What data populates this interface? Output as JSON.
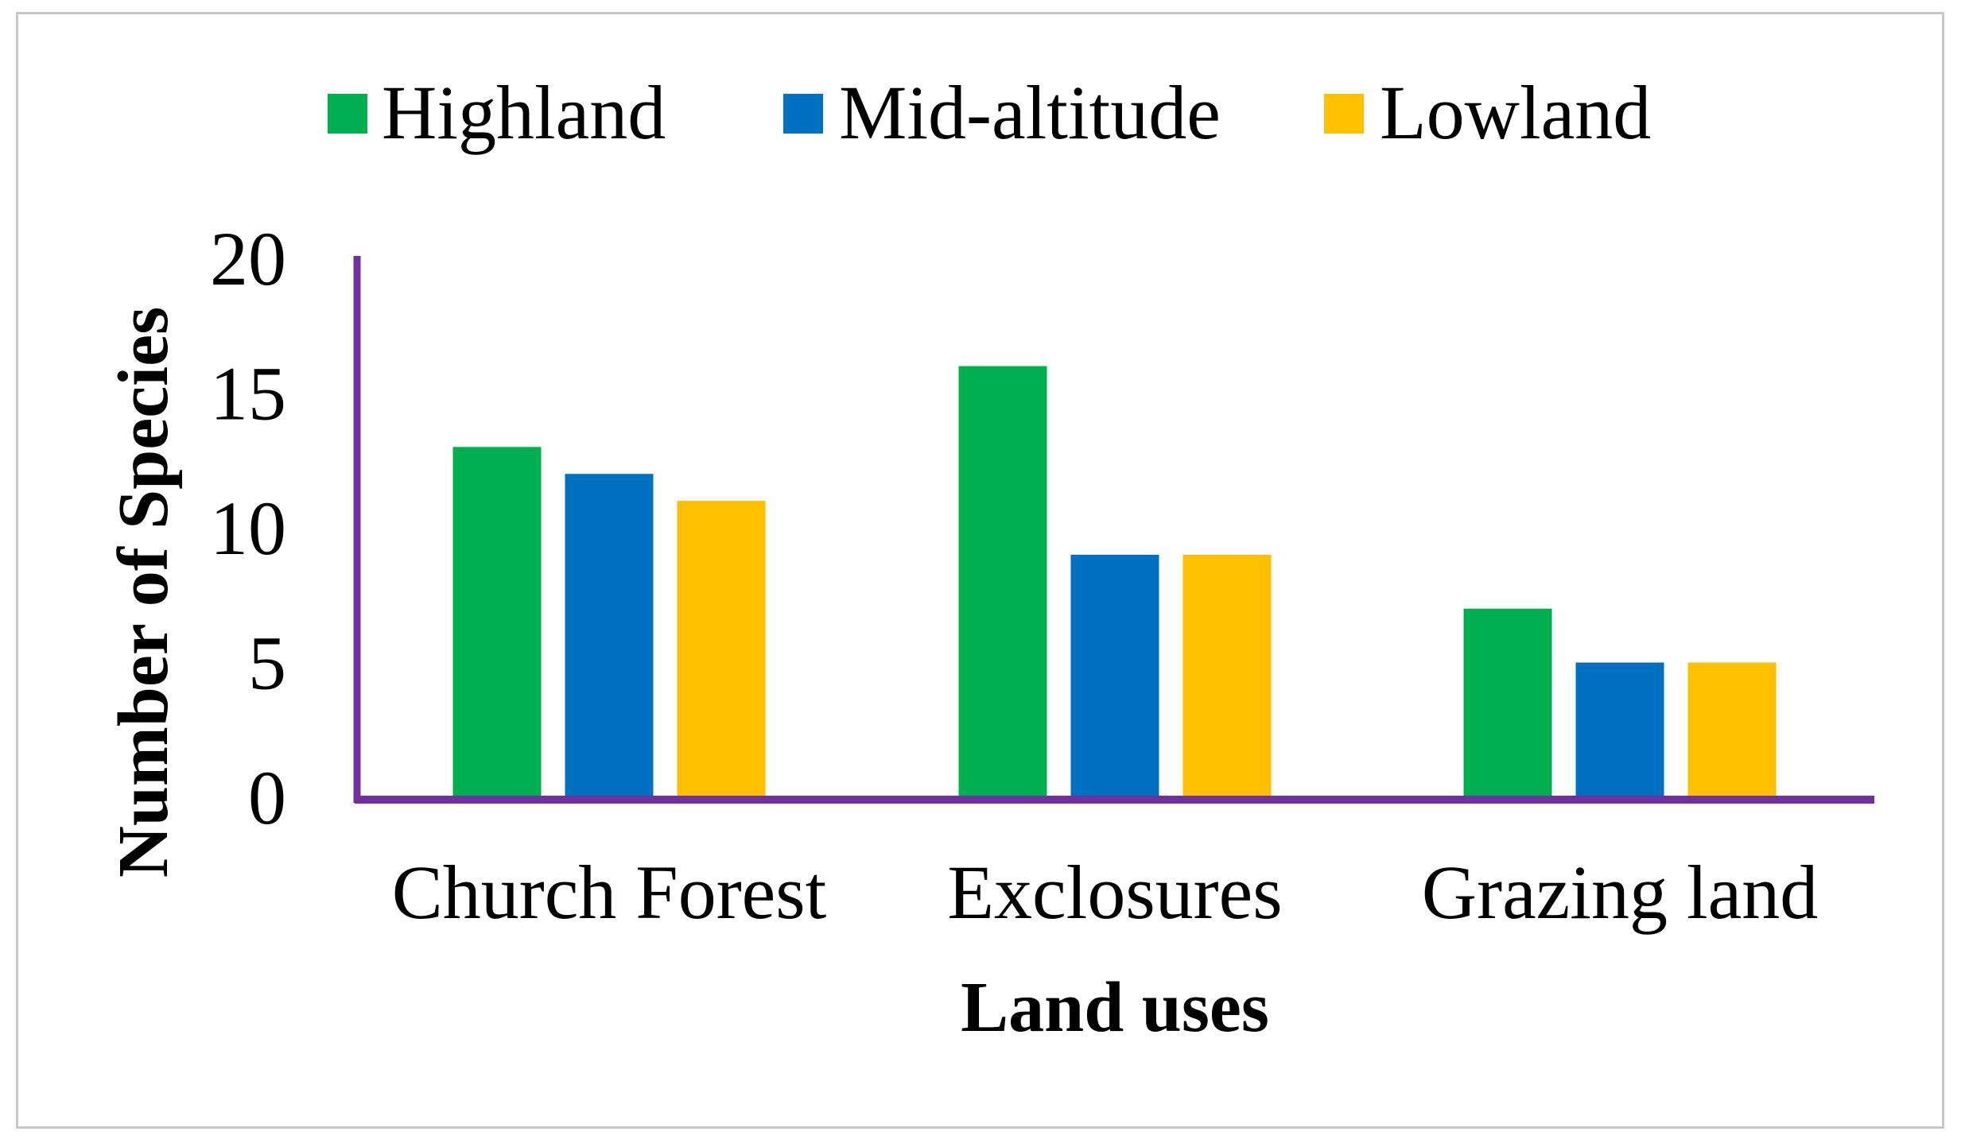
{
  "chart_data": {
    "type": "bar",
    "title": "",
    "xlabel": "Land uses",
    "ylabel": "Number of Species",
    "categories": [
      "Church Forest",
      "Exclosures",
      "Grazing land"
    ],
    "series": [
      {
        "name": "Highland",
        "color": "#00b050",
        "values": [
          13,
          16,
          7
        ]
      },
      {
        "name": "Mid-altitude",
        "color": "#0070c0",
        "values": [
          12,
          9,
          5
        ]
      },
      {
        "name": "Lowland",
        "color": "#ffc000",
        "values": [
          11,
          9,
          5
        ]
      }
    ],
    "ylim": [
      0,
      20
    ],
    "yticks": [
      "0",
      "5",
      "10",
      "15",
      "20"
    ],
    "grid": false,
    "legend": "top",
    "axis_color": "#7030a0"
  }
}
